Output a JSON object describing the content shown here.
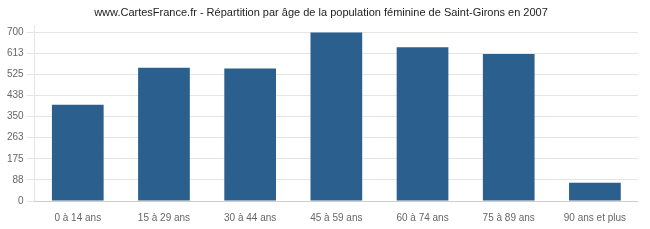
{
  "chart_data": {
    "type": "bar",
    "title": "www.CartesFrance.fr - Répartition par âge de la population féminine de Saint-Girons en 2007",
    "categories": [
      "0 à 14 ans",
      "15 à 29 ans",
      "30 à 44 ans",
      "45 à 59 ans",
      "60 à 74 ans",
      "75 à 89 ans",
      "90 ans et plus"
    ],
    "values": [
      400,
      553,
      550,
      700,
      638,
      610,
      76
    ],
    "color": "#2B5F8E",
    "ylim": [
      0,
      730
    ],
    "yticks": [
      0,
      88,
      175,
      263,
      350,
      438,
      525,
      613,
      700
    ],
    "grid": true
  }
}
